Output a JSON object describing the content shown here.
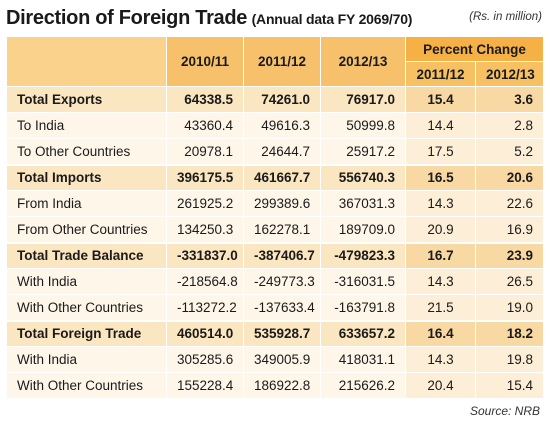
{
  "title": "Direction of Foreign Trade",
  "subtitle": "(Annual  data FY 2069/70)",
  "units": "(Rs. in million)",
  "headers": {
    "years": [
      "2010/11",
      "2011/12",
      "2012/13"
    ],
    "percent_change": "Percent Change",
    "percent_years": [
      "2011/12",
      "2012/13"
    ]
  },
  "rows": [
    {
      "label": "Total Exports",
      "values": [
        "64338.5",
        "74261.0",
        "76917.0",
        "15.4",
        "3.6"
      ]
    },
    {
      "label": "To India",
      "values": [
        "43360.4",
        "49616.3",
        "50999.8",
        "14.4",
        "2.8"
      ]
    },
    {
      "label": "To Other Countries",
      "values": [
        "20978.1",
        "24644.7",
        "25917.2",
        "17.5",
        "5.2"
      ]
    },
    {
      "label": "Total Imports",
      "values": [
        "396175.5",
        "461667.7",
        "556740.3",
        "16.5",
        "20.6"
      ]
    },
    {
      "label": "From India",
      "values": [
        "261925.2",
        "299389.6",
        "367031.3",
        "14.3",
        "22.6"
      ]
    },
    {
      "label": "From Other Countries",
      "values": [
        "134250.3",
        "162278.1",
        "189709.0",
        "20.9",
        "16.9"
      ]
    },
    {
      "label": "Total Trade Balance",
      "values": [
        "-331837.0",
        "-387406.7",
        "-479823.3",
        "16.7",
        "23.9"
      ]
    },
    {
      "label": "With India",
      "values": [
        "-218564.8",
        "-249773.3",
        "-316031.5",
        "14.3",
        "26.5"
      ]
    },
    {
      "label": "With Other Countries",
      "values": [
        "-113272.2",
        "-137633.4",
        "-163791.8",
        "21.5",
        "19.0"
      ]
    },
    {
      "label": "Total Foreign Trade",
      "values": [
        "460514.0",
        "535928.7",
        "633657.2",
        "16.4",
        "18.2"
      ]
    },
    {
      "label": "With India",
      "values": [
        "305285.6",
        "349005.9",
        "418031.1",
        "14.3",
        "19.8"
      ]
    },
    {
      "label": "With Other Countries",
      "values": [
        "155228.4",
        "186922.8",
        "215626.2",
        "20.4",
        "15.4"
      ]
    }
  ],
  "source": "Source: NRB"
}
